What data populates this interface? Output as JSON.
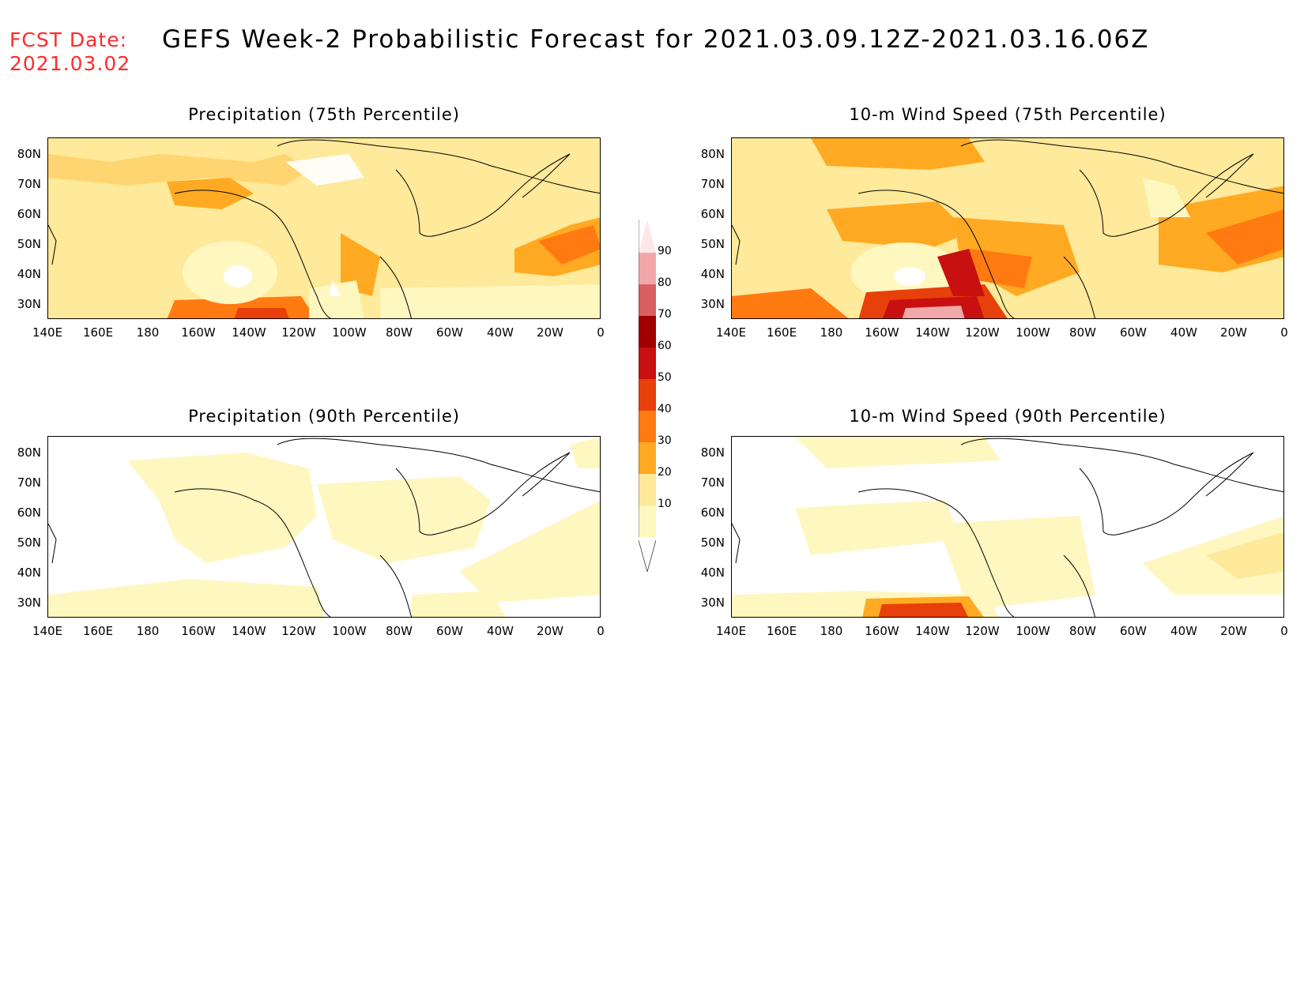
{
  "header": {
    "fcst_label": "FCST Date:",
    "fcst_date": "2021.03.02",
    "title": "GEFS Week-2 Probabilistic Forecast for 2021.03.09.12Z-2021.03.16.06Z"
  },
  "panels": [
    {
      "id": "precip75",
      "title": "Precipitation (75th Percentile)"
    },
    {
      "id": "wind75",
      "title": "10-m Wind Speed (75th Percentile)"
    },
    {
      "id": "precip90",
      "title": "Precipitation (90th Percentile)"
    },
    {
      "id": "wind90",
      "title": "10-m Wind Speed (90th Percentile)"
    }
  ],
  "axes": {
    "lat_labels": [
      "80N",
      "70N",
      "60N",
      "50N",
      "40N",
      "30N"
    ],
    "lon_labels": [
      "140E",
      "160E",
      "180",
      "160W",
      "140W",
      "120W",
      "100W",
      "80W",
      "60W",
      "40W",
      "20W",
      "0"
    ]
  },
  "colorbar": {
    "levels": [
      "10",
      "20",
      "30",
      "40",
      "50",
      "60",
      "70",
      "80",
      "90"
    ],
    "colors": [
      "#fff7c0",
      "#ffe99a",
      "#ffaa22",
      "#ff7a10",
      "#e8400a",
      "#c81010",
      "#a00000",
      "#d86060",
      "#f2a8a8",
      "#fde8e8"
    ]
  }
}
